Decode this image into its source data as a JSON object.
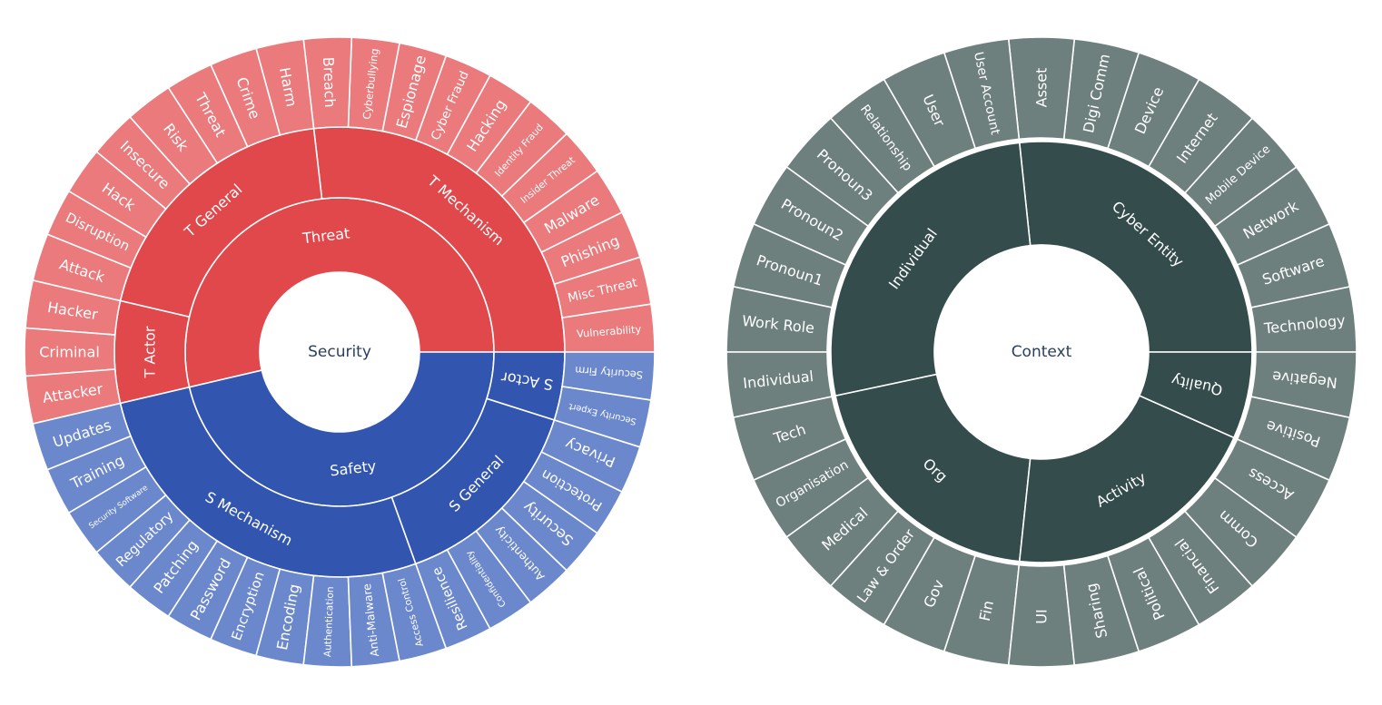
{
  "chart_data": [
    {
      "type": "sunburst",
      "root": "Security",
      "colors": {
        "root": "#ffffff",
        "Threat": "#e0484b",
        "Threat_leaf": "#ea7a7c",
        "Safety": "#3255b0",
        "Safety_leaf": "#6c88cc"
      },
      "children": [
        {
          "name": "Threat",
          "children": [
            {
              "name": "T Mechanism",
              "children": [
                {
                  "name": "Vulnerability",
                  "value": 1
                },
                {
                  "name": "Misc Threat",
                  "value": 1
                },
                {
                  "name": "Phishing",
                  "value": 1
                },
                {
                  "name": "Malware",
                  "value": 1
                },
                {
                  "name": "Insider Threat",
                  "value": 1
                },
                {
                  "name": "Identity Fraud",
                  "value": 1
                },
                {
                  "name": "Hacking",
                  "value": 1
                },
                {
                  "name": "Cyber Fraud",
                  "value": 1
                },
                {
                  "name": "Espionage",
                  "value": 1
                },
                {
                  "name": "Cyberbullying",
                  "value": 1
                },
                {
                  "name": "Breach",
                  "value": 1
                }
              ]
            },
            {
              "name": "T General",
              "children": [
                {
                  "name": "Harm",
                  "value": 1
                },
                {
                  "name": "Crime",
                  "value": 1
                },
                {
                  "name": "Threat",
                  "value": 1
                },
                {
                  "name": "Risk",
                  "value": 1
                },
                {
                  "name": "Insecure",
                  "value": 1
                },
                {
                  "name": "Hack",
                  "value": 1
                },
                {
                  "name": "Disruption",
                  "value": 1
                },
                {
                  "name": "Attack",
                  "value": 1
                }
              ]
            },
            {
              "name": "T Actor",
              "children": [
                {
                  "name": "Hacker",
                  "value": 1
                },
                {
                  "name": "Criminal",
                  "value": 1
                },
                {
                  "name": "Attacker",
                  "value": 1
                }
              ]
            }
          ]
        },
        {
          "name": "Safety",
          "children": [
            {
              "name": "S Mechanism",
              "children": [
                {
                  "name": "Updates",
                  "value": 1
                },
                {
                  "name": "Training",
                  "value": 1
                },
                {
                  "name": "Security Software",
                  "value": 1
                },
                {
                  "name": "Regulatory",
                  "value": 1
                },
                {
                  "name": "Patching",
                  "value": 1
                },
                {
                  "name": "Password",
                  "value": 1
                },
                {
                  "name": "Encryption",
                  "value": 1
                },
                {
                  "name": "Encoding",
                  "value": 1
                },
                {
                  "name": "Authentication",
                  "value": 1
                },
                {
                  "name": "Anti-Malware",
                  "value": 1
                },
                {
                  "name": "Access Control",
                  "value": 1
                }
              ]
            },
            {
              "name": "S General",
              "children": [
                {
                  "name": "Resilience",
                  "value": 1
                },
                {
                  "name": "Confidentiality",
                  "value": 1
                },
                {
                  "name": "Authenticity",
                  "value": 1
                },
                {
                  "name": "Security",
                  "value": 1
                },
                {
                  "name": "Protection",
                  "value": 1
                },
                {
                  "name": "Privacy",
                  "value": 1
                }
              ]
            },
            {
              "name": "S Actor",
              "children": [
                {
                  "name": "Security Expert",
                  "value": 1
                },
                {
                  "name": "Security Firm",
                  "value": 1
                }
              ]
            }
          ]
        }
      ]
    },
    {
      "type": "sunburst",
      "root": "Context",
      "colors": {
        "root": "#ffffff",
        "inner": "#344c4c",
        "leaf": "#6e807e"
      },
      "children": [
        {
          "name": "Cyber Entity",
          "children": [
            {
              "name": "Technology",
              "value": 1
            },
            {
              "name": "Software",
              "value": 1
            },
            {
              "name": "Network",
              "value": 1
            },
            {
              "name": "Mobile Device",
              "value": 1
            },
            {
              "name": "Internet",
              "value": 1
            },
            {
              "name": "Device",
              "value": 1
            },
            {
              "name": "Digi Comm",
              "value": 1
            },
            {
              "name": "Asset",
              "value": 1
            }
          ]
        },
        {
          "name": "Individual",
          "children": [
            {
              "name": "User Account",
              "value": 1
            },
            {
              "name": "User",
              "value": 1
            },
            {
              "name": "Relationship",
              "value": 1
            },
            {
              "name": "Pronoun3",
              "value": 1
            },
            {
              "name": "Pronoun2",
              "value": 1
            },
            {
              "name": "Pronoun1",
              "value": 1
            },
            {
              "name": "Work Role",
              "value": 1
            },
            {
              "name": "Individual",
              "value": 1
            }
          ]
        },
        {
          "name": "Org",
          "children": [
            {
              "name": "Tech",
              "value": 1
            },
            {
              "name": "Organisation",
              "value": 1
            },
            {
              "name": "Medical",
              "value": 1
            },
            {
              "name": "Law & Order",
              "value": 1
            },
            {
              "name": "Gov",
              "value": 1
            },
            {
              "name": "Fin",
              "value": 1
            }
          ]
        },
        {
          "name": "Activity",
          "children": [
            {
              "name": "UI",
              "value": 1
            },
            {
              "name": "Sharing",
              "value": 1
            },
            {
              "name": "Political",
              "value": 1
            },
            {
              "name": "Financial",
              "value": 1
            },
            {
              "name": "Comm",
              "value": 1
            },
            {
              "name": "Access",
              "value": 1
            }
          ]
        },
        {
          "name": "Quality",
          "children": [
            {
              "name": "Positive",
              "value": 1
            },
            {
              "name": "Negative",
              "value": 1
            }
          ]
        }
      ]
    }
  ]
}
